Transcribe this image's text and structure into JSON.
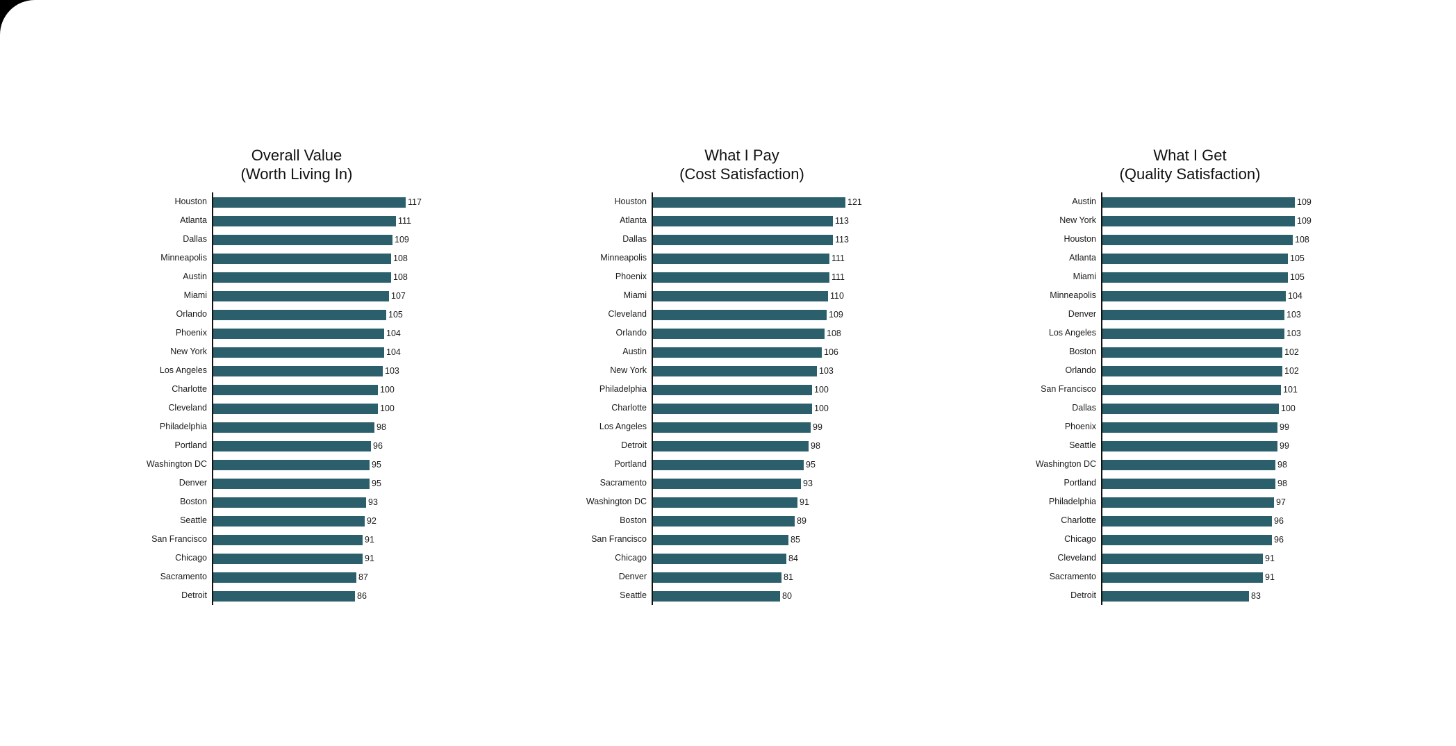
{
  "colors": {
    "bar": "#2b5f6b",
    "background": "#ffffff",
    "text": "#111111"
  },
  "chart_data": [
    {
      "type": "bar",
      "orientation": "horizontal",
      "title": "Overall Value\n(Worth Living In)",
      "title_line1": "Overall Value",
      "title_line2": "(Worth Living In)",
      "xlabel": "",
      "ylabel": "",
      "grid": false,
      "legend": null,
      "xlim": [
        0,
        117
      ],
      "categories": [
        "Houston",
        "Atlanta",
        "Dallas",
        "Minneapolis",
        "Austin",
        "Miami",
        "Orlando",
        "Phoenix",
        "New York",
        "Los Angeles",
        "Charlotte",
        "Cleveland",
        "Philadelphia",
        "Portland",
        "Washington DC",
        "Denver",
        "Boston",
        "Seattle",
        "San Francisco",
        "Chicago",
        "Sacramento",
        "Detroit"
      ],
      "values": [
        117,
        111,
        109,
        108,
        108,
        107,
        105,
        104,
        104,
        103,
        100,
        100,
        98,
        96,
        95,
        95,
        93,
        92,
        91,
        91,
        87,
        86
      ]
    },
    {
      "type": "bar",
      "orientation": "horizontal",
      "title": "What I Pay\n(Cost Satisfaction)",
      "title_line1": "What I Pay",
      "title_line2": "(Cost Satisfaction)",
      "xlabel": "",
      "ylabel": "",
      "grid": false,
      "legend": null,
      "xlim": [
        0,
        121
      ],
      "categories": [
        "Houston",
        "Atlanta",
        "Dallas",
        "Minneapolis",
        "Phoenix",
        "Miami",
        "Cleveland",
        "Orlando",
        "Austin",
        "New York",
        "Philadelphia",
        "Charlotte",
        "Los Angeles",
        "Detroit",
        "Portland",
        "Sacramento",
        "Washington DC",
        "Boston",
        "San Francisco",
        "Chicago",
        "Denver",
        "Seattle"
      ],
      "values": [
        121,
        113,
        113,
        111,
        111,
        110,
        109,
        108,
        106,
        103,
        100,
        100,
        99,
        98,
        95,
        93,
        91,
        89,
        85,
        84,
        81,
        80
      ]
    },
    {
      "type": "bar",
      "orientation": "horizontal",
      "title": "What I Get\n(Quality Satisfaction)",
      "title_line1": "What I Get",
      "title_line2": "(Quality Satisfaction)",
      "xlabel": "",
      "ylabel": "",
      "grid": false,
      "legend": null,
      "xlim": [
        0,
        109
      ],
      "categories": [
        "Austin",
        "New York",
        "Houston",
        "Atlanta",
        "Miami",
        "Minneapolis",
        "Denver",
        "Los Angeles",
        "Boston",
        "Orlando",
        "San Francisco",
        "Dallas",
        "Phoenix",
        "Seattle",
        "Washington DC",
        "Portland",
        "Philadelphia",
        "Charlotte",
        "Chicago",
        "Cleveland",
        "Sacramento",
        "Detroit"
      ],
      "values": [
        109,
        109,
        108,
        105,
        105,
        104,
        103,
        103,
        102,
        102,
        101,
        100,
        99,
        99,
        98,
        98,
        97,
        96,
        96,
        91,
        91,
        83
      ]
    }
  ]
}
